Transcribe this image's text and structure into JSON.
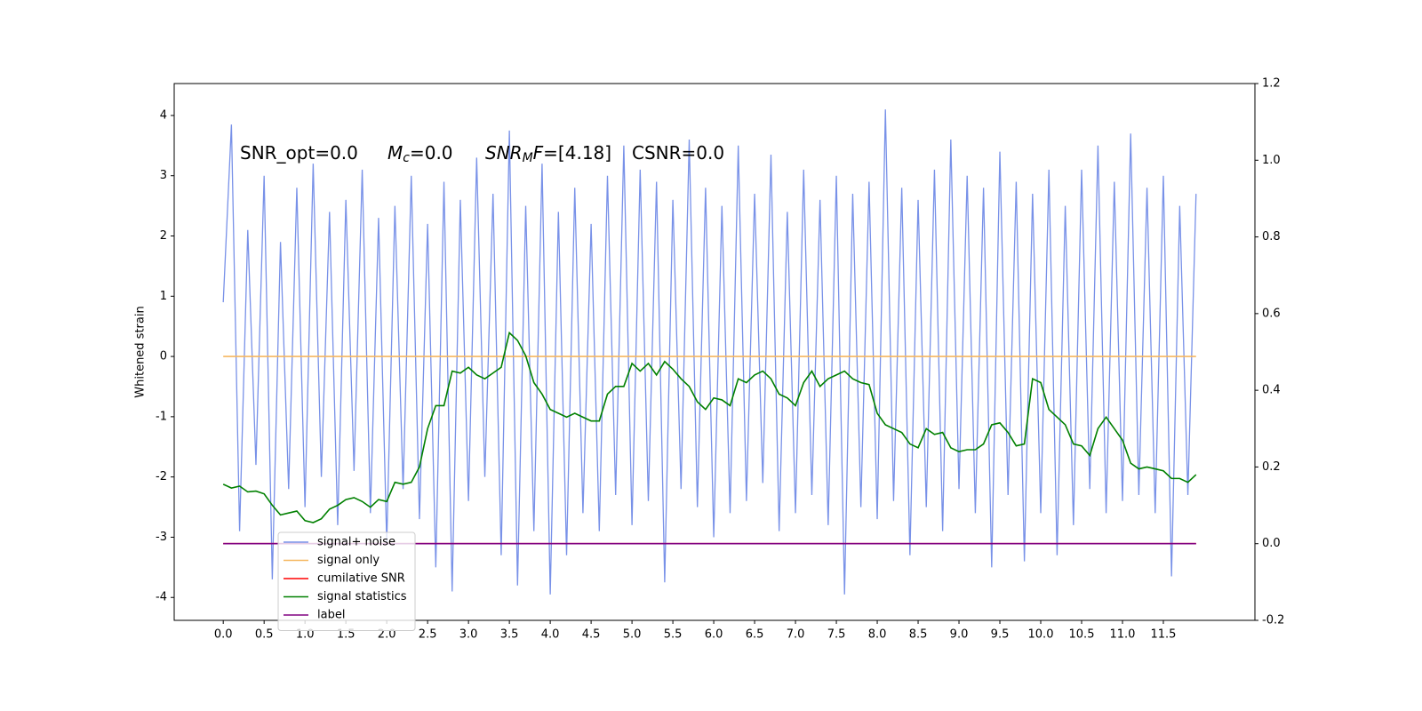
{
  "chart_data": {
    "type": "line",
    "ylabel": "Whitened strain",
    "annotations": [
      {
        "text": "SNR_opt=0.0"
      },
      {
        "symbol": "M",
        "sub": "c",
        "text": "=0.0"
      },
      {
        "symbol": "SNR",
        "sub": "M",
        "symbol2": "F",
        "text": "=[4.18]"
      },
      {
        "text": "CSNR=0.0"
      }
    ],
    "xlim": [
      -0.6,
      12.62
    ],
    "ylim": [
      -4.38,
      4.53
    ],
    "y2lim": [
      -0.2,
      1.2
    ],
    "xticks": [
      {
        "value": 0,
        "label": "0.0"
      },
      0.5,
      {
        "value": 1,
        "label": "1.0"
      },
      1.5,
      {
        "value": 2,
        "label": "2.0"
      },
      2.5,
      {
        "value": 3,
        "label": "3.0"
      },
      3.5,
      {
        "value": 4,
        "label": "4.0"
      },
      4.5,
      {
        "value": 5,
        "label": "5.0"
      },
      5.5,
      {
        "value": 6,
        "label": "6.0"
      },
      6.5,
      {
        "value": 7,
        "label": "7.0"
      },
      7.5,
      {
        "value": 8,
        "label": "8.0"
      },
      8.5,
      {
        "value": 9,
        "label": "9.0"
      },
      9.5,
      {
        "value": 10,
        "label": "10.0"
      },
      10.5,
      {
        "value": 11,
        "label": "11.0"
      },
      11.5
    ],
    "yticks": [
      -4,
      -3,
      -2,
      -1,
      0,
      1,
      2,
      3,
      4
    ],
    "y2ticks": [
      -0.2,
      {
        "value": 0,
        "label": "0.0"
      },
      0.2,
      0.4,
      0.6,
      0.8,
      {
        "value": 1,
        "label": "1.0"
      },
      1.2
    ],
    "legend": "lower left",
    "x": [
      0,
      0.1,
      0.2,
      0.3,
      0.4,
      0.5,
      0.6,
      0.7,
      0.8,
      0.9,
      1,
      1.1,
      1.2,
      1.3,
      1.4,
      1.5,
      1.6,
      1.7,
      1.8,
      1.9,
      2,
      2.1,
      2.2,
      2.3,
      2.4,
      2.5,
      2.6,
      2.7,
      2.8,
      2.9,
      3,
      3.1,
      3.2,
      3.3,
      3.4,
      3.5,
      3.6,
      3.7,
      3.8,
      3.9,
      4,
      4.1,
      4.2,
      4.3,
      4.4,
      4.5,
      4.6,
      4.7,
      4.8,
      4.9,
      5,
      5.1,
      5.2,
      5.3,
      5.4,
      5.5,
      5.6,
      5.7,
      5.8,
      5.9,
      6,
      6.1,
      6.2,
      6.3,
      6.4,
      6.5,
      6.6,
      6.7,
      6.8,
      6.9,
      7,
      7.1,
      7.2,
      7.3,
      7.4,
      7.5,
      7.6,
      7.7,
      7.8,
      7.9,
      8,
      8.1,
      8.2,
      8.3,
      8.4,
      8.5,
      8.6,
      8.7,
      8.8,
      8.9,
      9,
      9.1,
      9.2,
      9.3,
      9.4,
      9.5,
      9.6,
      9.7,
      9.8,
      9.9,
      10,
      10.1,
      10.2,
      10.3,
      10.4,
      10.5,
      10.6,
      10.7,
      10.8,
      10.9,
      11,
      11.1,
      11.2,
      11.3,
      11.4,
      11.5,
      11.6,
      11.7,
      11.8,
      11.9
    ],
    "series": [
      {
        "name": "signal+ noise",
        "color": "#7891e8",
        "values": [
          0.9,
          3.85,
          -2.9,
          2.1,
          -1.8,
          3.0,
          -3.7,
          1.9,
          -2.2,
          2.8,
          -2.5,
          3.2,
          -2.0,
          2.4,
          -2.8,
          2.6,
          -1.9,
          3.1,
          -2.6,
          2.3,
          -3.1,
          2.5,
          -2.2,
          3.0,
          -2.7,
          2.2,
          -3.5,
          2.9,
          -3.9,
          2.6,
          -2.4,
          3.3,
          -2.0,
          2.7,
          -3.3,
          3.75,
          -3.8,
          2.5,
          -2.9,
          3.2,
          -3.95,
          2.4,
          -3.3,
          2.8,
          -2.6,
          2.2,
          -2.9,
          3.0,
          -2.3,
          3.5,
          -2.8,
          3.1,
          -2.4,
          2.9,
          -3.75,
          2.6,
          -2.2,
          3.6,
          -2.5,
          2.8,
          -3.0,
          2.5,
          -2.6,
          3.5,
          -2.4,
          2.7,
          -2.1,
          3.35,
          -2.9,
          2.4,
          -2.6,
          3.1,
          -2.3,
          2.6,
          -2.8,
          3.0,
          -3.95,
          2.7,
          -2.5,
          2.9,
          -2.7,
          4.1,
          -2.4,
          2.8,
          -3.3,
          2.6,
          -2.5,
          3.1,
          -2.9,
          3.6,
          -2.2,
          3.0,
          -2.6,
          2.8,
          -3.5,
          3.4,
          -2.3,
          2.9,
          -3.4,
          2.7,
          -2.6,
          3.1,
          -3.3,
          2.5,
          -2.8,
          3.1,
          -2.2,
          3.5,
          -2.6,
          2.9,
          -2.4,
          3.7,
          -2.3,
          2.8,
          -2.6,
          3.0,
          -3.65,
          2.5,
          -2.3,
          2.7
        ]
      },
      {
        "name": "signal only",
        "color": "#f5b760",
        "values": [
          0,
          0,
          0,
          0,
          0,
          0,
          0,
          0,
          0,
          0,
          0,
          0,
          0,
          0,
          0,
          0,
          0,
          0,
          0,
          0,
          0,
          0,
          0,
          0,
          0,
          0,
          0,
          0,
          0,
          0,
          0,
          0,
          0,
          0,
          0,
          0,
          0,
          0,
          0,
          0,
          0,
          0,
          0,
          0,
          0,
          0,
          0,
          0,
          0,
          0,
          0,
          0,
          0,
          0,
          0,
          0,
          0,
          0,
          0,
          0,
          0,
          0,
          0,
          0,
          0,
          0,
          0,
          0,
          0,
          0,
          0,
          0,
          0,
          0,
          0,
          0,
          0,
          0,
          0,
          0,
          0,
          0,
          0,
          0,
          0,
          0,
          0,
          0,
          0,
          0,
          0,
          0,
          0,
          0,
          0,
          0,
          0,
          0,
          0,
          0,
          0,
          0,
          0,
          0,
          0,
          0,
          0,
          0,
          0,
          0,
          0,
          0,
          0,
          0,
          0,
          0,
          0,
          0,
          0,
          0
        ]
      },
      {
        "name": "cumilative SNR",
        "color": "#ff0000",
        "axis": "y2",
        "values": [
          0,
          0,
          0,
          0,
          0,
          0,
          0,
          0,
          0,
          0,
          0,
          0,
          0,
          0,
          0,
          0,
          0,
          0,
          0,
          0,
          0,
          0,
          0,
          0,
          0,
          0,
          0,
          0,
          0,
          0,
          0,
          0,
          0,
          0,
          0,
          0,
          0,
          0,
          0,
          0,
          0,
          0,
          0,
          0,
          0,
          0,
          0,
          0,
          0,
          0,
          0,
          0,
          0,
          0,
          0,
          0,
          0,
          0,
          0,
          0,
          0,
          0,
          0,
          0,
          0,
          0,
          0,
          0,
          0,
          0,
          0,
          0,
          0,
          0,
          0,
          0,
          0,
          0,
          0,
          0,
          0,
          0,
          0,
          0,
          0,
          0,
          0,
          0,
          0,
          0,
          0,
          0,
          0,
          0,
          0,
          0,
          0,
          0,
          0,
          0,
          0,
          0,
          0,
          0,
          0,
          0,
          0,
          0,
          0,
          0,
          0,
          0,
          0,
          0,
          0,
          0,
          0,
          0,
          0,
          0
        ]
      },
      {
        "name": "signal statistics",
        "color": "#008000",
        "axis": "y2",
        "values": [
          0.155,
          0.145,
          0.15,
          0.135,
          0.137,
          0.13,
          0.1,
          0.075,
          0.08,
          0.085,
          0.06,
          0.055,
          0.065,
          0.09,
          0.1,
          0.115,
          0.12,
          0.11,
          0.095,
          0.115,
          0.11,
          0.16,
          0.155,
          0.16,
          0.2,
          0.3,
          0.36,
          0.36,
          0.45,
          0.445,
          0.46,
          0.44,
          0.43,
          0.445,
          0.46,
          0.55,
          0.53,
          0.49,
          0.42,
          0.39,
          0.35,
          0.34,
          0.33,
          0.34,
          0.33,
          0.32,
          0.32,
          0.39,
          0.41,
          0.41,
          0.47,
          0.45,
          0.47,
          0.44,
          0.475,
          0.455,
          0.43,
          0.41,
          0.37,
          0.35,
          0.38,
          0.375,
          0.36,
          0.43,
          0.42,
          0.44,
          0.45,
          0.43,
          0.39,
          0.38,
          0.36,
          0.42,
          0.45,
          0.41,
          0.43,
          0.44,
          0.45,
          0.43,
          0.42,
          0.415,
          0.34,
          0.31,
          0.3,
          0.29,
          0.26,
          0.25,
          0.3,
          0.285,
          0.29,
          0.25,
          0.24,
          0.245,
          0.245,
          0.26,
          0.31,
          0.315,
          0.29,
          0.255,
          0.26,
          0.43,
          0.42,
          0.35,
          0.33,
          0.31,
          0.26,
          0.255,
          0.23,
          0.3,
          0.33,
          0.3,
          0.27,
          0.21,
          0.195,
          0.2,
          0.195,
          0.19,
          0.17,
          0.17,
          0.16,
          0.18
        ]
      },
      {
        "name": "label",
        "color": "#800080",
        "axis": "y2",
        "values": [
          0,
          0,
          0,
          0,
          0,
          0,
          0,
          0,
          0,
          0,
          0,
          0,
          0,
          0,
          0,
          0,
          0,
          0,
          0,
          0,
          0,
          0,
          0,
          0,
          0,
          0,
          0,
          0,
          0,
          0,
          0,
          0,
          0,
          0,
          0,
          0,
          0,
          0,
          0,
          0,
          0,
          0,
          0,
          0,
          0,
          0,
          0,
          0,
          0,
          0,
          0,
          0,
          0,
          0,
          0,
          0,
          0,
          0,
          0,
          0,
          0,
          0,
          0,
          0,
          0,
          0,
          0,
          0,
          0,
          0,
          0,
          0,
          0,
          0,
          0,
          0,
          0,
          0,
          0,
          0,
          0,
          0,
          0,
          0,
          0,
          0,
          0,
          0,
          0,
          0,
          0,
          0,
          0,
          0,
          0,
          0,
          0,
          0,
          0,
          0,
          0,
          0,
          0,
          0,
          0,
          0,
          0,
          0,
          0,
          0,
          0,
          0,
          0,
          0,
          0,
          0,
          0,
          0,
          0,
          0
        ]
      }
    ]
  }
}
